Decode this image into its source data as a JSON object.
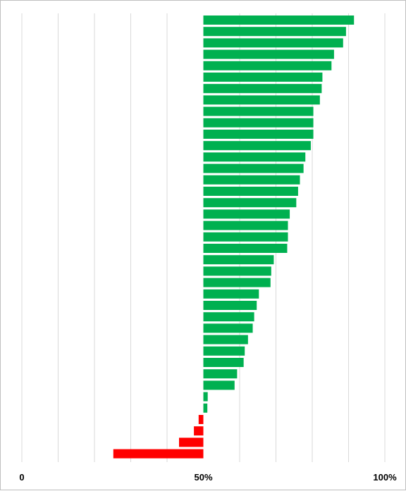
{
  "chart_data": {
    "type": "bar",
    "orientation": "horizontal",
    "baseline": 50,
    "xlim": [
      0,
      100
    ],
    "x_ticks": [
      0,
      10,
      20,
      30,
      40,
      50,
      60,
      70,
      80,
      90,
      100
    ],
    "tick_labels": [
      {
        "value": 0,
        "label": "0"
      },
      {
        "value": 50,
        "label": "50%"
      },
      {
        "value": 100,
        "label": "100%"
      }
    ],
    "grid": true,
    "legend": "none",
    "colors": {
      "above": "#00b050",
      "below": "#ff0000",
      "grid": "#d9d9d9"
    },
    "values": [
      91.5,
      89.3,
      88.5,
      86.0,
      85.3,
      82.8,
      82.6,
      82.1,
      80.3,
      80.3,
      80.3,
      79.6,
      78.1,
      77.6,
      76.6,
      76.1,
      75.6,
      73.8,
      73.3,
      73.3,
      73.1,
      69.4,
      68.7,
      68.5,
      65.3,
      64.7,
      64.0,
      63.6,
      62.3,
      61.4,
      61.1,
      59.3,
      58.6,
      51.2,
      51.1,
      48.7,
      47.4,
      43.3,
      25.2
    ]
  }
}
